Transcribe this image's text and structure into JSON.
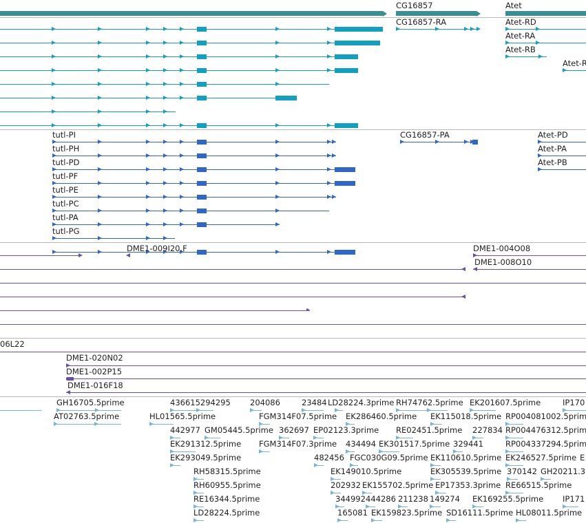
{
  "colors": {
    "gene": "#3a8f92",
    "transcript_rna": "#12a0c2",
    "transcript_pep": "#3066c8",
    "clone": "#6a4ea6",
    "est": "#78b4d9",
    "separator": "#b8b8b8"
  },
  "tracks": {
    "genes": {
      "labels": [
        "CG16857",
        "Atet"
      ]
    },
    "transcripts": {
      "labels": [
        "CG16857-RA",
        "Atet-RD",
        "Atet-RA",
        "Atet-RB",
        "Atet-R"
      ]
    },
    "proteins": {
      "labels": [
        "tutl-PI",
        "CG16857-PA",
        "Atet-PD",
        "tutl-PH",
        "Atet-PA",
        "tutl-PD",
        "Atet-PB",
        "tutl-PF",
        "tutl-PE",
        "tutl-PC",
        "tutl-PA",
        "tutl-PG"
      ]
    },
    "clones": {
      "labels": [
        "DME1-009I20.F",
        "DME1-004O08",
        "DME1-008O10",
        "06L22",
        "DME1-020N02",
        "DME1-002P15",
        "DME1-016F18"
      ]
    },
    "ests": {
      "labels": [
        "GH16705.5prime",
        "436615294295",
        "204086",
        "23484",
        "LD28224.3prime",
        "RH74762.5prime",
        "EK201607.5prime",
        "IP170",
        "AT02763.5prime",
        "HL01565.5prime",
        "FGM314F07.5prime",
        "EK286460.5prime",
        "EK115018.5prime",
        "RP004081002.5prime",
        "442977",
        "GM05445.5prime",
        "362697",
        "EP02123.3prime",
        "RE02451.5prime",
        "227834",
        "RP004476312.5prime",
        "EK291312.5prime",
        "FGM314F07.3prime",
        "434494",
        "EK301517.5prime",
        "329441",
        "RP004337294.5prime",
        "EK293049.5prime",
        "482456",
        "FGC030G09.5prime",
        "EK110610.5prime",
        "EK246527.5prime",
        "E",
        "RH58315.5prime",
        "EK149010.5prime",
        "EK305539.5prime",
        "370142",
        "GH20211.3",
        "RH60955.5prime",
        "202932",
        "EK155702.5prime",
        "EP17353.3prime",
        "RE66515.5prime",
        "RE16344.5prime",
        "344992",
        "444286",
        "211238",
        "149274",
        "EK169255.5prime",
        "IP171",
        "LD28224.5prime",
        "165081",
        "EK159823.5prime",
        "SD16111.5prime",
        "HL08011.5prime"
      ]
    }
  }
}
